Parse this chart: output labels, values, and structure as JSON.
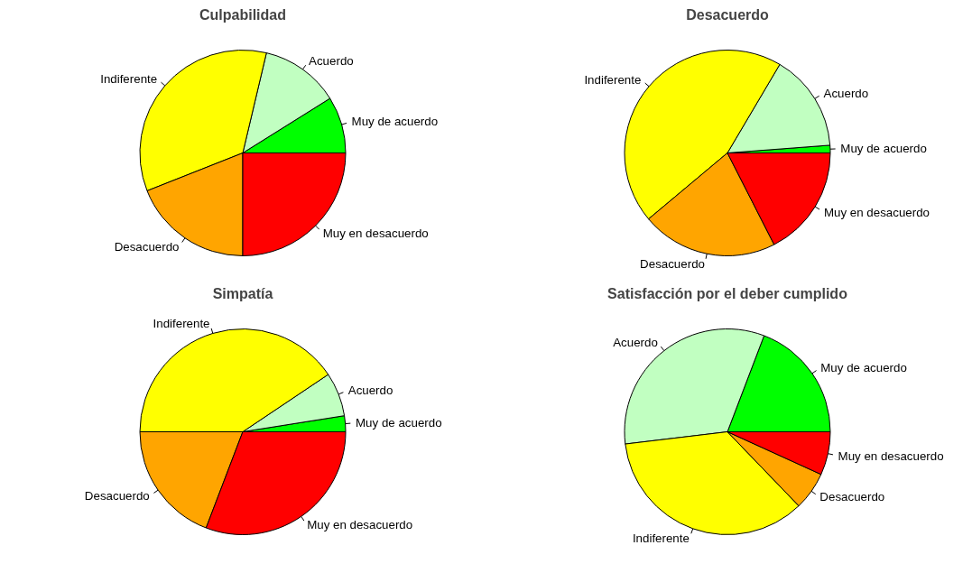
{
  "chart_data": [
    {
      "type": "pie",
      "title": "Culpabilidad",
      "categories": [
        "Muy de acuerdo",
        "Acuerdo",
        "Indiferente",
        "Desacuerdo",
        "Muy en desacuerdo"
      ],
      "values": [
        8.9,
        12.4,
        34.7,
        19,
        25
      ],
      "colors": [
        "#00ff00",
        "#c1ffc1",
        "#ffff00",
        "#ffa500",
        "#ff0000"
      ]
    },
    {
      "type": "pie",
      "title": "Desacuerdo",
      "categories": [
        "Muy de acuerdo",
        "Acuerdo",
        "Indiferente",
        "Desacuerdo",
        "Muy en desacuerdo"
      ],
      "values": [
        1.2,
        15.3,
        44.6,
        21.4,
        17.5
      ],
      "colors": [
        "#00ff00",
        "#c1ffc1",
        "#ffff00",
        "#ffa500",
        "#ff0000"
      ]
    },
    {
      "type": "pie",
      "title": "Simpatía",
      "categories": [
        "Muy de acuerdo",
        "Acuerdo",
        "Indiferente",
        "Desacuerdo",
        "Muy en desacuerdo"
      ],
      "values": [
        2.5,
        6.9,
        40.6,
        19.2,
        30.8
      ],
      "colors": [
        "#00ff00",
        "#c1ffc1",
        "#ffff00",
        "#ffa500",
        "#ff0000"
      ]
    },
    {
      "type": "pie",
      "title": "Satisfacción por el deber cumplido",
      "categories": [
        "Muy de acuerdo",
        "Acuerdo",
        "Indiferente",
        "Desacuerdo",
        "Muy en desacuerdo"
      ],
      "values": [
        19.2,
        32.7,
        35.3,
        6,
        6.8
      ],
      "colors": [
        "#00ff00",
        "#c1ffc1",
        "#ffff00",
        "#ffa500",
        "#ff0000"
      ]
    }
  ]
}
